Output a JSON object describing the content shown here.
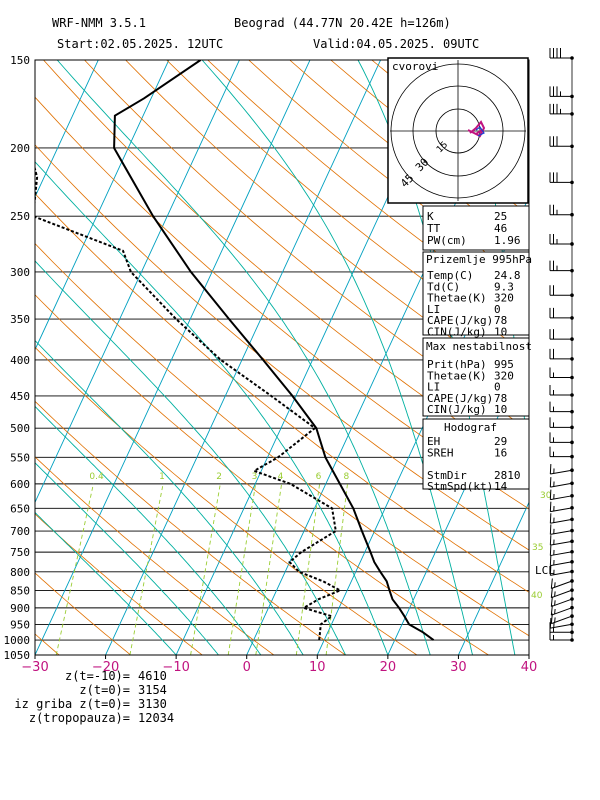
{
  "header": {
    "model": "WRF-NMM 3.5.1",
    "station": "Beograd (44.77N 20.42E  h=126m)",
    "start": "Start:02.05.2025.  12UTC",
    "valid": "Valid:04.05.2025.  09UTC"
  },
  "stats": {
    "index_box": [
      {
        "label": "K",
        "value": "25"
      },
      {
        "label": "TT",
        "value": "46"
      },
      {
        "label": "PW(cm)",
        "value": "1.96"
      }
    ],
    "surface_box": {
      "title": "Prizemlje 995hPa",
      "rows": [
        {
          "label": "Temp(C)",
          "value": "24.8"
        },
        {
          "label": "Td(C)",
          "value": "9.3"
        },
        {
          "label": "Thetae(K)",
          "value": "320"
        },
        {
          "label": "LI",
          "value": "0"
        },
        {
          "label": "CAPE(J/kg)",
          "value": "78"
        },
        {
          "label": "CIN(J/kg)",
          "value": "10"
        }
      ]
    },
    "max_box": {
      "title": "Max nestabilnost",
      "rows": [
        {
          "label": "Prit(hPa)",
          "value": "995"
        },
        {
          "label": "Thetae(K)",
          "value": "320"
        },
        {
          "label": "LI",
          "value": "0"
        },
        {
          "label": "CAPE(J/kg)",
          "value": "78"
        },
        {
          "label": "CIN(J/kg)",
          "value": "10"
        }
      ]
    },
    "hodo_box": {
      "title": "Hodograf",
      "rows": [
        {
          "label": "EH",
          "value": "29"
        },
        {
          "label": "SREH",
          "value": "16"
        },
        {
          "label": "",
          "value": ""
        },
        {
          "label": "StmDir",
          "value": "2810"
        },
        {
          "label": "StmSpd(kt)",
          "value": "14"
        }
      ]
    }
  },
  "footer": [
    {
      "label": "z(t=-10)=",
      "value": "4610"
    },
    {
      "label": "z(t=0)=",
      "value": "3154"
    },
    {
      "label": "iz griba z(t=0)=",
      "value": "3130"
    },
    {
      "label": "z(tropopauza)=",
      "value": "12034"
    }
  ],
  "hodograph": {
    "label": "cvorovi",
    "rings": [
      "15",
      "30",
      "45"
    ]
  },
  "lcl_label": "LCL",
  "colors": {
    "temperature": "#000000",
    "dewpoint": "#000000",
    "isotherm": "#00a0c0",
    "dry_adiabat": "#e07000",
    "moist_adiabat": "#00b0a0",
    "mixing_ratio": "#9acd32",
    "axis_text": "#c0137f",
    "hodo_trace": "#c0137f"
  },
  "chart_data": {
    "type": "line",
    "title": "",
    "xlabel": "",
    "ylabel": "",
    "xlim": [
      -30,
      40
    ],
    "ylim": [
      1050,
      150
    ],
    "y_scale": "log",
    "x_ticks": [
      "−30",
      "−20",
      "−10",
      "0",
      "10",
      "20",
      "30",
      "40"
    ],
    "x_tick_values": [
      -30,
      -20,
      -10,
      0,
      10,
      20,
      30,
      40
    ],
    "y_ticks": [
      "150",
      "200",
      "250",
      "300",
      "350",
      "400",
      "450",
      "500",
      "550",
      "600",
      "650",
      "700",
      "750",
      "800",
      "850",
      "900",
      "950",
      "1000",
      "1050"
    ],
    "y_tick_values": [
      150,
      200,
      250,
      300,
      350,
      400,
      450,
      500,
      550,
      600,
      650,
      700,
      750,
      800,
      850,
      900,
      950,
      1000,
      1050
    ],
    "mixing_ratio_labels": [
      "0.4",
      "1",
      "2",
      "3",
      "4",
      "6",
      "8"
    ],
    "mixing_ratio_values": [
      0.4,
      1,
      2,
      3,
      4,
      6,
      8
    ],
    "moist_labels": [
      "30",
      "35",
      "40"
    ],
    "series": [
      {
        "name": "",
        "role": "temperature",
        "p": [
          1000,
          975,
          950,
          925,
          900,
          875,
          850,
          825,
          800,
          775,
          750,
          700,
          650,
          600,
          550,
          500,
          450,
          400,
          350,
          300,
          250,
          200,
          180,
          170,
          150
        ],
        "t": [
          25.5,
          23.5,
          21.0,
          19.8,
          18.5,
          17.0,
          16.0,
          15.0,
          13.5,
          12.0,
          10.8,
          8.2,
          5.5,
          2.0,
          -1.8,
          -5.0,
          -10.5,
          -17.0,
          -24.5,
          -33.0,
          -42.0,
          -52.0,
          -54.0,
          -51.0,
          -45.5
        ]
      },
      {
        "name": "",
        "role": "dewpoint",
        "p": [
          1000,
          950,
          925,
          900,
          875,
          850,
          825,
          800,
          775,
          750,
          700,
          650,
          600,
          575,
          550,
          500,
          450,
          400,
          350,
          300,
          280,
          250,
          220,
          200,
          180,
          160,
          150
        ],
        "t": [
          9.3,
          8.5,
          9.5,
          5.0,
          6.5,
          9.0,
          6.0,
          2.0,
          0.0,
          1.0,
          4.5,
          2.5,
          -5.0,
          -11.0,
          -8.5,
          -5.2,
          -13.5,
          -23.0,
          -32.0,
          -41.5,
          -44.0,
          -59.0,
          -61.0,
          -64.0,
          -66.0,
          -69.0,
          -70.0
        ]
      }
    ],
    "barbs": [
      {
        "p": 1000,
        "spd": 15,
        "dir": 270
      },
      {
        "p": 975,
        "spd": 15,
        "dir": 270
      },
      {
        "p": 950,
        "spd": 15,
        "dir": 260
      },
      {
        "p": 925,
        "spd": 15,
        "dir": 250
      },
      {
        "p": 900,
        "spd": 15,
        "dir": 250
      },
      {
        "p": 875,
        "spd": 15,
        "dir": 250
      },
      {
        "p": 850,
        "spd": 15,
        "dir": 250
      },
      {
        "p": 825,
        "spd": 15,
        "dir": 250
      },
      {
        "p": 800,
        "spd": 15,
        "dir": 260
      },
      {
        "p": 775,
        "spd": 15,
        "dir": 260
      },
      {
        "p": 750,
        "spd": 15,
        "dir": 260
      },
      {
        "p": 725,
        "spd": 15,
        "dir": 260
      },
      {
        "p": 700,
        "spd": 15,
        "dir": 260
      },
      {
        "p": 675,
        "spd": 15,
        "dir": 260
      },
      {
        "p": 650,
        "spd": 15,
        "dir": 260
      },
      {
        "p": 625,
        "spd": 15,
        "dir": 260
      },
      {
        "p": 600,
        "spd": 15,
        "dir": 260
      },
      {
        "p": 575,
        "spd": 15,
        "dir": 260
      },
      {
        "p": 550,
        "spd": 15,
        "dir": 270
      },
      {
        "p": 525,
        "spd": 15,
        "dir": 270
      },
      {
        "p": 500,
        "spd": 15,
        "dir": 270
      },
      {
        "p": 475,
        "spd": 15,
        "dir": 270
      },
      {
        "p": 450,
        "spd": 15,
        "dir": 270
      },
      {
        "p": 425,
        "spd": 15,
        "dir": 270
      },
      {
        "p": 400,
        "spd": 20,
        "dir": 270
      },
      {
        "p": 375,
        "spd": 20,
        "dir": 270
      },
      {
        "p": 350,
        "spd": 20,
        "dir": 270
      },
      {
        "p": 325,
        "spd": 20,
        "dir": 270
      },
      {
        "p": 300,
        "spd": 25,
        "dir": 270
      },
      {
        "p": 275,
        "spd": 25,
        "dir": 270
      },
      {
        "p": 250,
        "spd": 25,
        "dir": 270
      },
      {
        "p": 225,
        "spd": 30,
        "dir": 270
      },
      {
        "p": 200,
        "spd": 30,
        "dir": 270
      },
      {
        "p": 180,
        "spd": 35,
        "dir": 270
      },
      {
        "p": 170,
        "spd": 35,
        "dir": 270
      },
      {
        "p": 150,
        "spd": 40,
        "dir": 270
      }
    ]
  }
}
